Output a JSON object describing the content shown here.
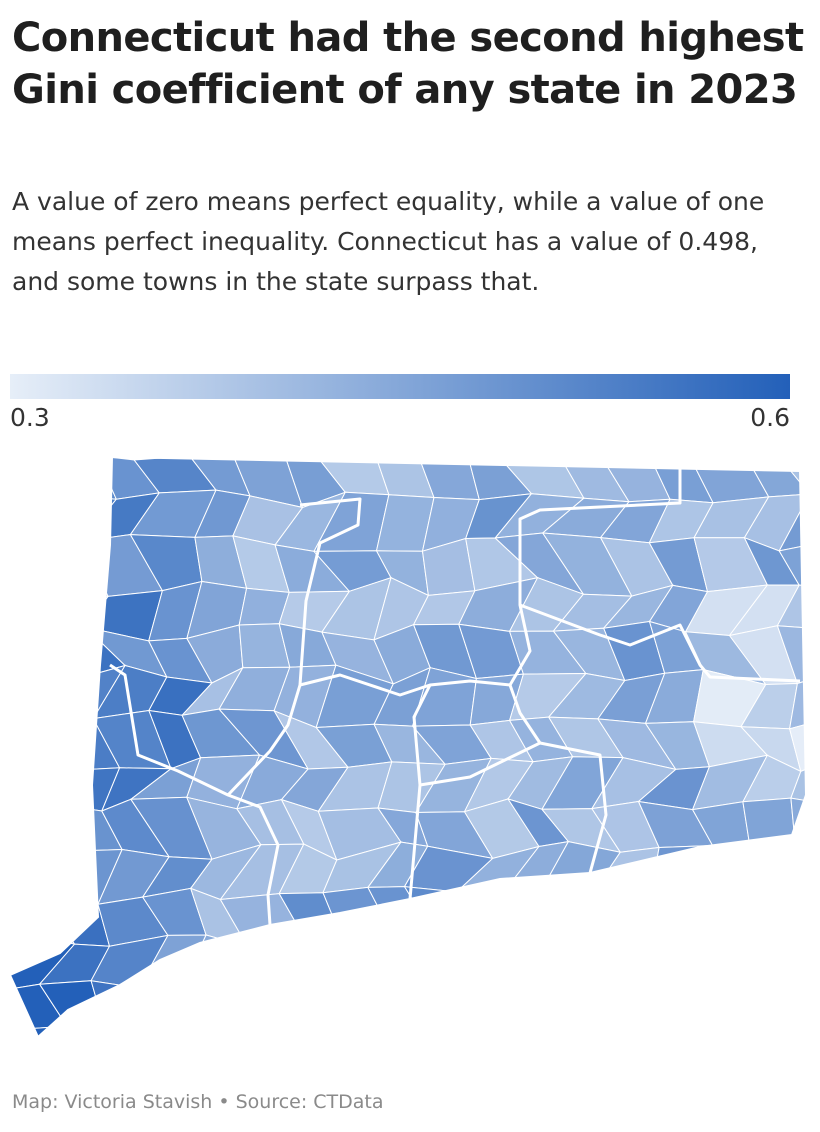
{
  "title": "Connecticut had the second highest Gini coefficient of any state in 2023",
  "subtitle": "A value of zero means perfect equality, while a value of one means perfect inequality. Connecticut has a value of 0.498, and some towns in the state surpass that.",
  "legend": {
    "min_label": "0.3",
    "max_label": "0.6",
    "min_color": "#e6eef8",
    "max_color": "#2360b9"
  },
  "map": {
    "type": "choropleth",
    "region": "Connecticut",
    "unit": "towns",
    "metric": "Gini coefficient"
  },
  "credit": "Map: Victoria Stavish • Source: CTData"
}
